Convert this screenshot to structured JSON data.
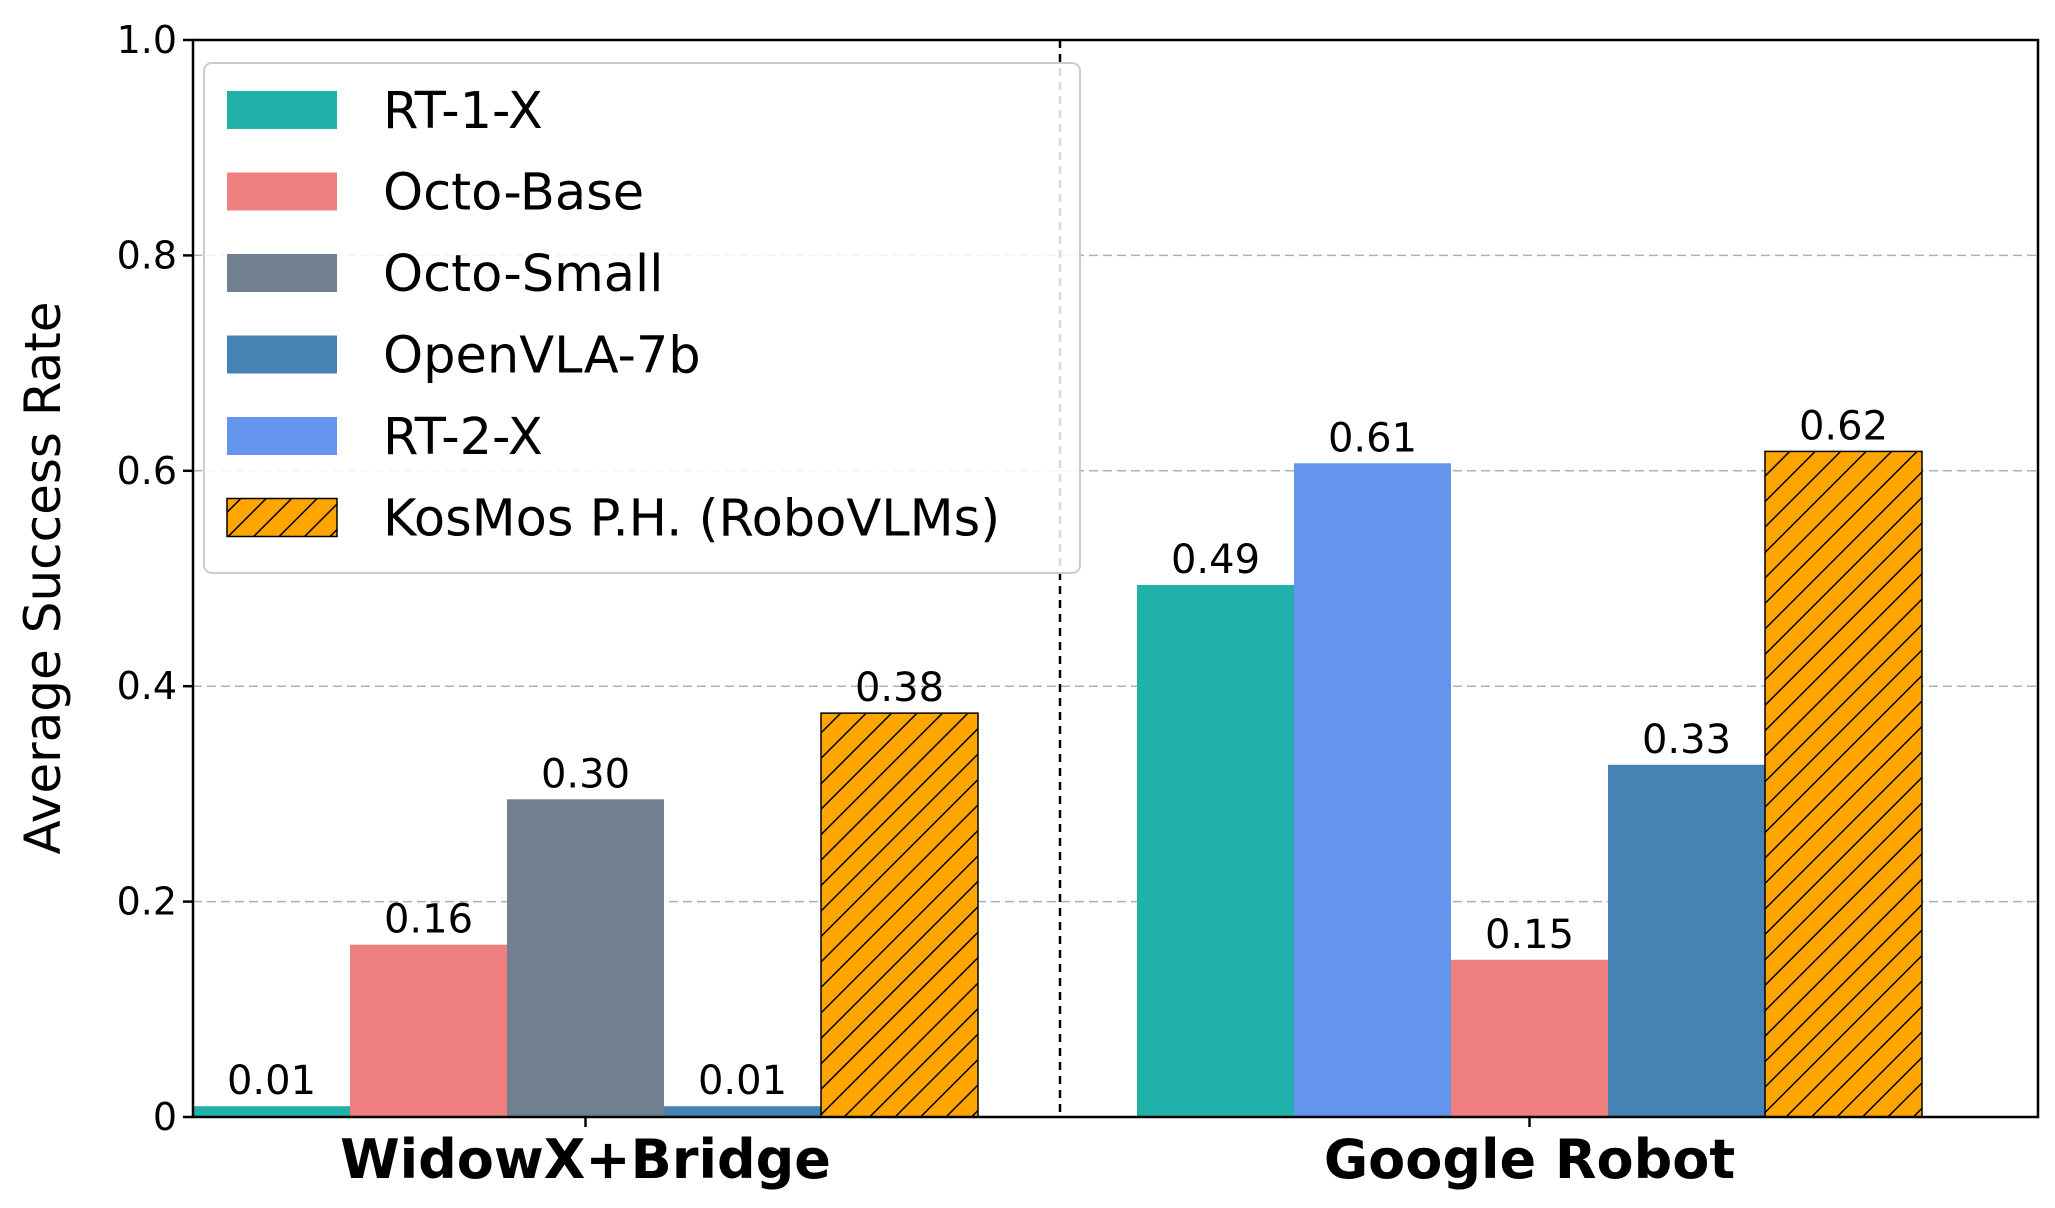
{
  "chart_data": {
    "type": "bar",
    "title": "",
    "xlabel": "",
    "ylabel": "Average Success Rate",
    "ylim": [
      0,
      1.0
    ],
    "yticks": [
      0,
      0.2,
      0.4,
      0.6,
      0.8,
      1.0
    ],
    "ytick_labels": [
      "0",
      "0.2",
      "0.4",
      "0.6",
      "0.8",
      "1.0"
    ],
    "grid": "horizontal dashed",
    "legend_position": "top-left",
    "groups": [
      {
        "name": "WidowX+Bridge",
        "bars": [
          {
            "series": "RT-1-X",
            "value": 0.01,
            "label": "0.01"
          },
          {
            "series": "Octo-Base",
            "value": 0.16,
            "label": "0.16"
          },
          {
            "series": "Octo-Small",
            "value": 0.295,
            "label": "0.30"
          },
          {
            "series": "OpenVLA-7b",
            "value": 0.01,
            "label": "0.01"
          },
          {
            "series": "KosMos P.H. (RoboVLMs)",
            "value": 0.375,
            "label": "0.38"
          }
        ]
      },
      {
        "name": "Google Robot",
        "bars": [
          {
            "series": "RT-1-X",
            "value": 0.494,
            "label": "0.49"
          },
          {
            "series": "RT-2-X",
            "value": 0.607,
            "label": "0.61"
          },
          {
            "series": "Octo-Base",
            "value": 0.146,
            "label": "0.15"
          },
          {
            "series": "OpenVLA-7b",
            "value": 0.327,
            "label": "0.33"
          },
          {
            "series": "KosMos P.H. (RoboVLMs)",
            "value": 0.618,
            "label": "0.62"
          }
        ]
      }
    ],
    "series": [
      {
        "name": "RT-1-X",
        "color": "#20b2aa",
        "hatch": false
      },
      {
        "name": "Octo-Base",
        "color": "#f08080",
        "hatch": false
      },
      {
        "name": "Octo-Small",
        "color": "#708090",
        "hatch": false
      },
      {
        "name": "OpenVLA-7b",
        "color": "#4682b4",
        "hatch": false
      },
      {
        "name": "RT-2-X",
        "color": "#6495ed",
        "hatch": false
      },
      {
        "name": "KosMos P.H. (RoboVLMs)",
        "color": "#ffa500",
        "hatch": true
      }
    ]
  }
}
